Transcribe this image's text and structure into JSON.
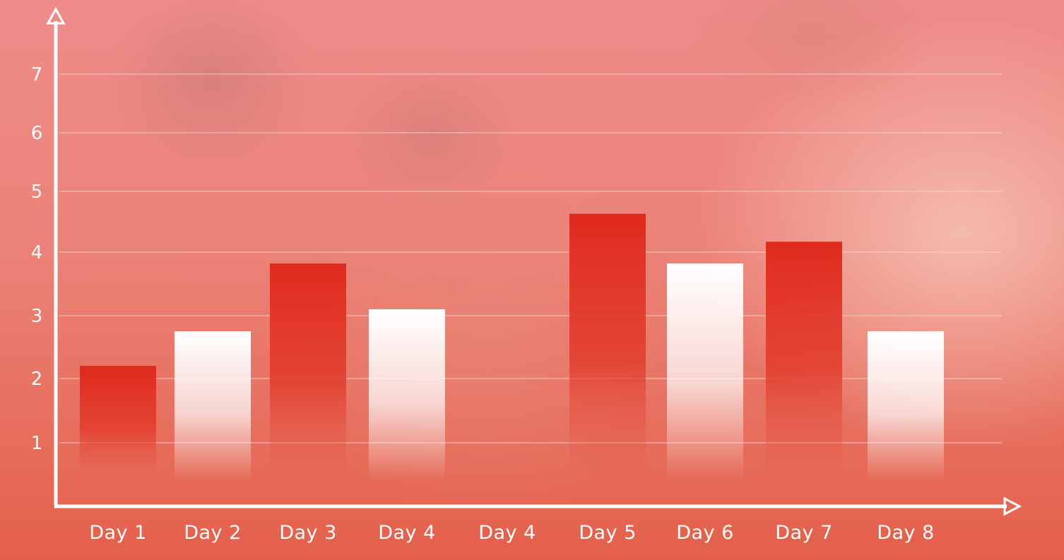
{
  "chart_data": {
    "type": "bar",
    "categories": [
      "Day  1",
      "Day  2",
      "Day  3",
      "Day  4",
      "Day  4",
      "Day  5",
      "Day  6",
      "Day  7",
      "Day  8"
    ],
    "values": [
      2.2,
      2.75,
      3.82,
      3.1,
      null,
      4.63,
      3.82,
      4.17,
      2.75
    ],
    "bar_styles": [
      "red",
      "white",
      "red",
      "white",
      "none",
      "red",
      "white",
      "red",
      "white"
    ],
    "yticks": [
      "1",
      "2",
      "3",
      "4",
      "5",
      "6",
      "7"
    ],
    "ylim": [
      0,
      7.5
    ],
    "grid": true,
    "colors": {
      "red_bar": "#e02a1e",
      "white_bar": "#ffffff",
      "axis": "#ffffff",
      "grid": "#f5d6d2"
    }
  }
}
